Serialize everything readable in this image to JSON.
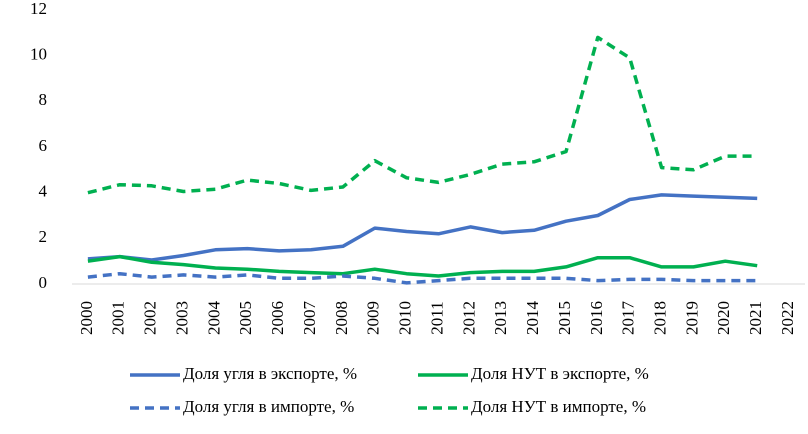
{
  "chart_data": {
    "type": "line",
    "categories": [
      "2000",
      "2001",
      "2002",
      "2003",
      "2004",
      "2005",
      "2006",
      "2007",
      "2008",
      "2009",
      "2010",
      "2011",
      "2012",
      "2013",
      "2014",
      "2015",
      "2016",
      "2017",
      "2018",
      "2019",
      "2020",
      "2021",
      "2022"
    ],
    "ylim": [
      0,
      12
    ],
    "yticks": [
      0,
      2,
      4,
      6,
      8,
      10,
      12
    ],
    "grid": false,
    "legend": "bottom",
    "series": [
      {
        "name": "Доля угля в экспорте, %",
        "color": "#4472c4",
        "dashed": false,
        "values": [
          1.1,
          1.2,
          1.05,
          1.25,
          1.5,
          1.55,
          1.45,
          1.5,
          1.65,
          2.45,
          2.3,
          2.2,
          2.5,
          2.25,
          2.35,
          2.75,
          3.0,
          3.7,
          3.9,
          3.85,
          3.8,
          3.75,
          null
        ]
      },
      {
        "name": "Доля НУТ в экспорте, %",
        "color": "#00b050",
        "dashed": false,
        "values": [
          1.0,
          1.2,
          0.95,
          0.85,
          0.7,
          0.65,
          0.55,
          0.5,
          0.45,
          0.65,
          0.45,
          0.35,
          0.5,
          0.55,
          0.55,
          0.75,
          1.15,
          1.15,
          0.75,
          0.75,
          1.0,
          0.8,
          null
        ]
      },
      {
        "name": "Доля угля в импорте, %",
        "color": "#4472c4",
        "dashed": true,
        "values": [
          0.3,
          0.45,
          0.3,
          0.4,
          0.3,
          0.4,
          0.25,
          0.25,
          0.35,
          0.25,
          0.05,
          0.15,
          0.25,
          0.25,
          0.25,
          0.25,
          0.15,
          0.2,
          0.2,
          0.15,
          0.15,
          0.15,
          null
        ]
      },
      {
        "name": "Доля НУТ в импорте, %",
        "color": "#00b050",
        "dashed": true,
        "values": [
          4.0,
          4.35,
          4.3,
          4.05,
          4.15,
          4.55,
          4.4,
          4.1,
          4.25,
          5.4,
          4.65,
          4.45,
          4.8,
          5.25,
          5.35,
          5.8,
          10.8,
          9.9,
          5.1,
          5.0,
          5.6,
          5.6,
          null
        ]
      }
    ]
  }
}
